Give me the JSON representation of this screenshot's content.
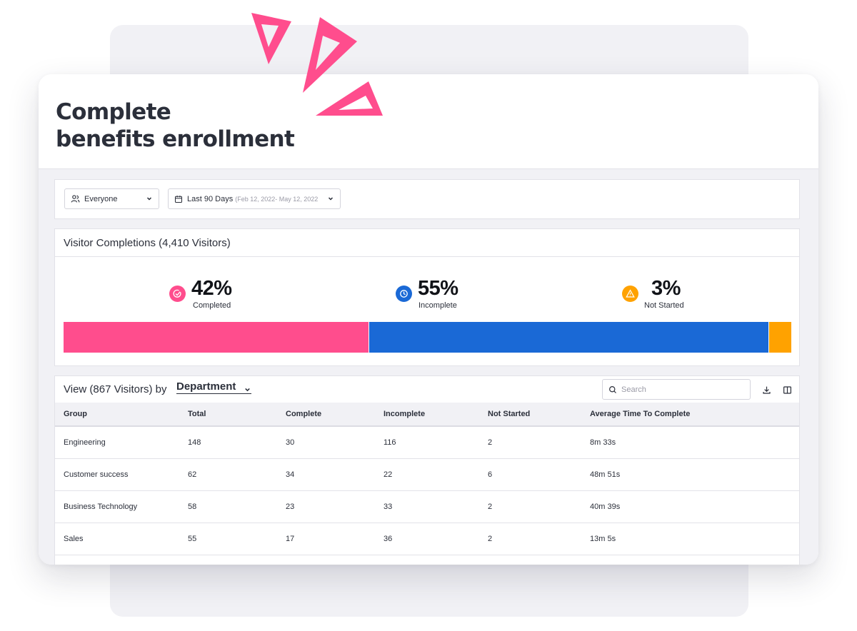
{
  "header": {
    "title_line1": "Complete",
    "title_line2": "benefits enrollment"
  },
  "filters": {
    "audience": {
      "icon": "users-icon",
      "value": "Everyone"
    },
    "date_range": {
      "icon": "calendar-icon",
      "value": "Last 90 Days",
      "sub": "(Feb 12, 2022- May 12, 2022"
    }
  },
  "completions": {
    "title": "Visitor Completions (4,410 Visitors)",
    "stats": [
      {
        "pct": "42%",
        "label": "Completed",
        "icon": "check-circle-icon",
        "color": "#ff4d8d",
        "value": 42
      },
      {
        "pct": "55%",
        "label": "Incomplete",
        "icon": "clock-icon",
        "color": "#1a69d6",
        "value": 55
      },
      {
        "pct": "3%",
        "label": "Not Started",
        "icon": "warning-icon",
        "color": "#ffa200",
        "value": 3
      }
    ]
  },
  "table_view": {
    "title": "View (867 Visitors) by",
    "group_by": "Department",
    "search_placeholder": "Search",
    "columns": [
      "Group",
      "Total",
      "Complete",
      "Incomplete",
      "Not Started",
      "Average Time To Complete"
    ],
    "rows": [
      [
        "Engineering",
        "148",
        "30",
        "116",
        "2",
        "8m 33s"
      ],
      [
        "Customer success",
        "62",
        "34",
        "22",
        "6",
        "48m 51s"
      ],
      [
        "Business Technology",
        "58",
        "23",
        "33",
        "2",
        "40m 39s"
      ],
      [
        "Sales",
        "55",
        "17",
        "36",
        "2",
        "13m 5s"
      ]
    ]
  },
  "colors": {
    "accent_pink": "#ff4d8d",
    "blue": "#1a69d6",
    "orange": "#ffa200",
    "background": "#f1f1f5"
  }
}
